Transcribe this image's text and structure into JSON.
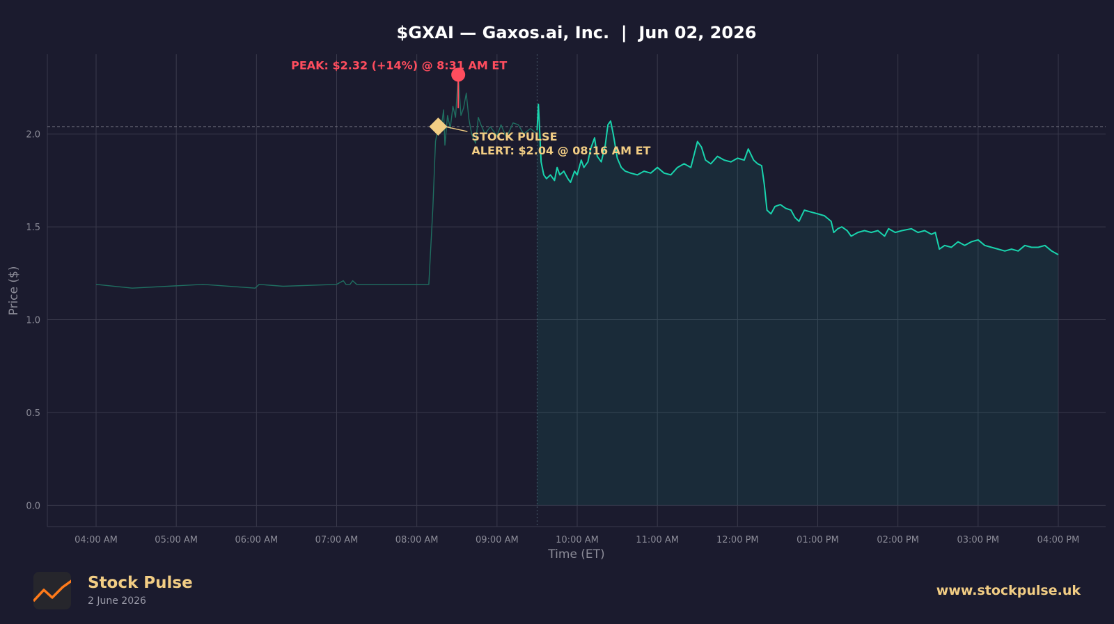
{
  "chart_data": {
    "type": "line",
    "title": "$GXAI — Gaxos.ai, Inc.  |  Jun 02, 2026",
    "xlabel": "Time (ET)",
    "ylabel": "Price ($)",
    "ylim": [
      -0.115,
      2.43
    ],
    "y_ticks": [
      0.0,
      0.5,
      1.0,
      1.5,
      2.0
    ],
    "y_tick_labels": [
      "0.0",
      "0.5",
      "1.0",
      "1.5",
      "2.0"
    ],
    "x_ticks": [
      "04:00 AM",
      "05:00 AM",
      "06:00 AM",
      "07:00 AM",
      "08:00 AM",
      "09:00 AM",
      "10:00 AM",
      "11:00 AM",
      "12:00 PM",
      "01:00 PM",
      "02:00 PM",
      "03:00 PM",
      "04:00 PM"
    ],
    "grid": true,
    "market_open": "09:30 AM",
    "series": [
      {
        "session": "pre-market",
        "color": "#1f6f61",
        "points": [
          [
            "04:00 AM",
            1.19
          ],
          [
            "04:27 AM",
            1.17
          ],
          [
            "05:20 AM",
            1.19
          ],
          [
            "05:59 AM",
            1.17
          ],
          [
            "06:02 AM",
            1.19
          ],
          [
            "06:20 AM",
            1.18
          ],
          [
            "07:00 AM",
            1.19
          ],
          [
            "07:05 AM",
            1.21
          ],
          [
            "07:07 AM",
            1.19
          ],
          [
            "07:10 AM",
            1.19
          ],
          [
            "07:12 AM",
            1.21
          ],
          [
            "07:15 AM",
            1.19
          ],
          [
            "08:09 AM",
            1.19
          ],
          [
            "08:12 AM",
            1.6
          ],
          [
            "08:14 AM",
            1.96
          ],
          [
            "08:16 AM",
            2.04
          ],
          [
            "08:18 AM",
            2.02
          ],
          [
            "08:20 AM",
            2.13
          ],
          [
            "08:21 AM",
            1.94
          ],
          [
            "08:23 AM",
            2.1
          ],
          [
            "08:25 AM",
            2.03
          ],
          [
            "08:27 AM",
            2.15
          ],
          [
            "08:29 AM",
            2.09
          ],
          [
            "08:31 AM",
            2.32
          ],
          [
            "08:33 AM",
            2.1
          ],
          [
            "08:35 AM",
            2.14
          ],
          [
            "08:37 AM",
            2.22
          ],
          [
            "08:39 AM",
            2.08
          ],
          [
            "08:41 AM",
            2.0
          ],
          [
            "08:44 AM",
            1.95
          ],
          [
            "08:46 AM",
            2.09
          ],
          [
            "08:48 AM",
            2.05
          ],
          [
            "08:51 AM",
            2.0
          ],
          [
            "08:55 AM",
            2.04
          ],
          [
            "09:00 AM",
            1.99
          ],
          [
            "09:03 AM",
            2.05
          ],
          [
            "09:07 AM",
            1.98
          ],
          [
            "09:12 AM",
            2.06
          ],
          [
            "09:16 AM",
            2.05
          ],
          [
            "09:20 AM",
            2.0
          ],
          [
            "09:25 AM",
            2.03
          ],
          [
            "09:30 AM",
            2.0
          ]
        ]
      },
      {
        "session": "regular",
        "color": "#19d3ad",
        "points": [
          [
            "09:30 AM",
            2.02
          ],
          [
            "09:31 AM",
            2.16
          ],
          [
            "09:33 AM",
            1.85
          ],
          [
            "09:35 AM",
            1.78
          ],
          [
            "09:37 AM",
            1.76
          ],
          [
            "09:40 AM",
            1.78
          ],
          [
            "09:43 AM",
            1.75
          ],
          [
            "09:45 AM",
            1.82
          ],
          [
            "09:47 AM",
            1.78
          ],
          [
            "09:50 AM",
            1.8
          ],
          [
            "09:53 AM",
            1.76
          ],
          [
            "09:55 AM",
            1.74
          ],
          [
            "09:58 AM",
            1.8
          ],
          [
            "10:00 AM",
            1.78
          ],
          [
            "10:03 AM",
            1.86
          ],
          [
            "10:05 AM",
            1.82
          ],
          [
            "10:08 AM",
            1.85
          ],
          [
            "10:10 AM",
            1.92
          ],
          [
            "10:13 AM",
            1.98
          ],
          [
            "10:15 AM",
            1.88
          ],
          [
            "10:18 AM",
            1.85
          ],
          [
            "10:21 AM",
            1.94
          ],
          [
            "10:23 AM",
            2.05
          ],
          [
            "10:25 AM",
            2.07
          ],
          [
            "10:27 AM",
            2.0
          ],
          [
            "10:30 AM",
            1.87
          ],
          [
            "10:33 AM",
            1.82
          ],
          [
            "10:36 AM",
            1.8
          ],
          [
            "10:40 AM",
            1.79
          ],
          [
            "10:45 AM",
            1.78
          ],
          [
            "10:50 AM",
            1.8
          ],
          [
            "10:55 AM",
            1.79
          ],
          [
            "11:00 AM",
            1.82
          ],
          [
            "11:05 AM",
            1.79
          ],
          [
            "11:10 AM",
            1.78
          ],
          [
            "11:15 AM",
            1.82
          ],
          [
            "11:20 AM",
            1.84
          ],
          [
            "11:25 AM",
            1.82
          ],
          [
            "11:30 AM",
            1.96
          ],
          [
            "11:33 AM",
            1.93
          ],
          [
            "11:36 AM",
            1.86
          ],
          [
            "11:40 AM",
            1.84
          ],
          [
            "11:45 AM",
            1.88
          ],
          [
            "11:50 AM",
            1.86
          ],
          [
            "11:55 AM",
            1.85
          ],
          [
            "12:00 PM",
            1.87
          ],
          [
            "12:05 PM",
            1.86
          ],
          [
            "12:08 PM",
            1.92
          ],
          [
            "12:12 PM",
            1.86
          ],
          [
            "12:15 PM",
            1.84
          ],
          [
            "12:18 PM",
            1.83
          ],
          [
            "12:20 PM",
            1.73
          ],
          [
            "12:22 PM",
            1.59
          ],
          [
            "12:25 PM",
            1.57
          ],
          [
            "12:28 PM",
            1.61
          ],
          [
            "12:32 PM",
            1.62
          ],
          [
            "12:36 PM",
            1.6
          ],
          [
            "12:40 PM",
            1.59
          ],
          [
            "12:43 PM",
            1.55
          ],
          [
            "12:46 PM",
            1.53
          ],
          [
            "12:50 PM",
            1.59
          ],
          [
            "12:55 PM",
            1.58
          ],
          [
            "01:00 PM",
            1.57
          ],
          [
            "01:05 PM",
            1.56
          ],
          [
            "01:10 PM",
            1.53
          ],
          [
            "01:12 PM",
            1.47
          ],
          [
            "01:15 PM",
            1.49
          ],
          [
            "01:18 PM",
            1.5
          ],
          [
            "01:22 PM",
            1.48
          ],
          [
            "01:25 PM",
            1.45
          ],
          [
            "01:30 PM",
            1.47
          ],
          [
            "01:35 PM",
            1.48
          ],
          [
            "01:40 PM",
            1.47
          ],
          [
            "01:45 PM",
            1.48
          ],
          [
            "01:50 PM",
            1.45
          ],
          [
            "01:53 PM",
            1.49
          ],
          [
            "01:58 PM",
            1.47
          ],
          [
            "02:03 PM",
            1.48
          ],
          [
            "02:10 PM",
            1.49
          ],
          [
            "02:15 PM",
            1.47
          ],
          [
            "02:20 PM",
            1.48
          ],
          [
            "02:25 PM",
            1.46
          ],
          [
            "02:28 PM",
            1.47
          ],
          [
            "02:31 PM",
            1.38
          ],
          [
            "02:35 PM",
            1.4
          ],
          [
            "02:40 PM",
            1.39
          ],
          [
            "02:45 PM",
            1.42
          ],
          [
            "02:50 PM",
            1.4
          ],
          [
            "02:55 PM",
            1.42
          ],
          [
            "03:00 PM",
            1.43
          ],
          [
            "03:05 PM",
            1.4
          ],
          [
            "03:10 PM",
            1.39
          ],
          [
            "03:15 PM",
            1.38
          ],
          [
            "03:20 PM",
            1.37
          ],
          [
            "03:25 PM",
            1.38
          ],
          [
            "03:30 PM",
            1.37
          ],
          [
            "03:35 PM",
            1.4
          ],
          [
            "03:40 PM",
            1.39
          ],
          [
            "03:45 PM",
            1.39
          ],
          [
            "03:50 PM",
            1.4
          ],
          [
            "03:55 PM",
            1.37
          ],
          [
            "04:00 PM",
            1.35
          ]
        ]
      }
    ],
    "alert": {
      "price": 2.04,
      "time": "08:16 AM",
      "label": "STOCK PULSE\nALERT: $2.04 @ 08:16 AM ET",
      "color": "#f2cd84"
    },
    "peak": {
      "price": 2.32,
      "time": "08:31 AM",
      "label": "PEAK: $2.32 (+14%) @ 8:31 AM ET",
      "color": "#ff4d5e"
    }
  },
  "footer": {
    "brand_name": "Stock Pulse",
    "brand_date": "2 June 2026",
    "site": "www.stockpulse.uk"
  }
}
